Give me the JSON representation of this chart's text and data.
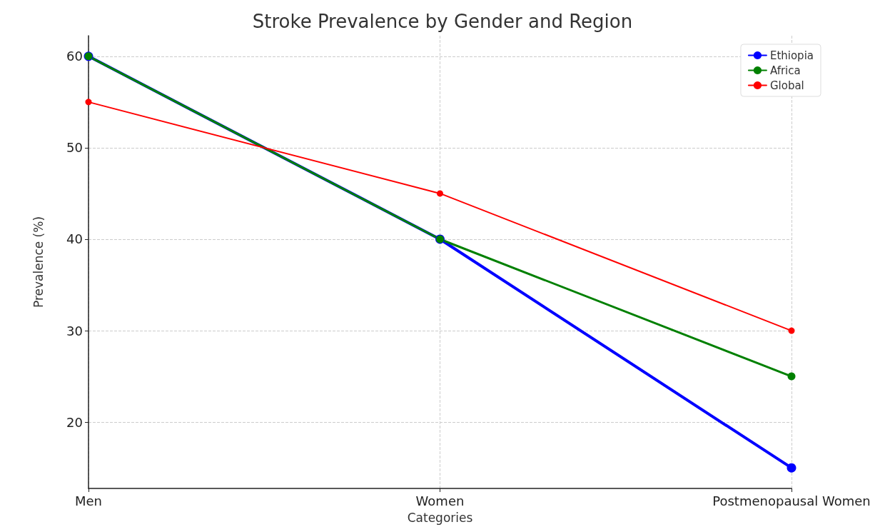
{
  "chart_data": {
    "type": "line",
    "title": "Stroke Prevalence by Gender and Region",
    "xlabel": "Categories",
    "ylabel": "Prevalence (%)",
    "categories": [
      "Men",
      "Women",
      "Postmenopausal Women"
    ],
    "series": [
      {
        "name": "Ethiopia",
        "color": "#0000ff",
        "values": [
          60,
          40,
          15
        ]
      },
      {
        "name": "Africa",
        "color": "#008000",
        "values": [
          60,
          40,
          25
        ]
      },
      {
        "name": "Global",
        "color": "#ff0000",
        "values": [
          55,
          45,
          30
        ]
      }
    ],
    "ylim": [
      12.75,
      62.25
    ],
    "yticks": [
      20,
      30,
      40,
      50,
      60
    ],
    "grid": true,
    "legend": "top right",
    "marker": "circle",
    "line_style": "solid"
  }
}
